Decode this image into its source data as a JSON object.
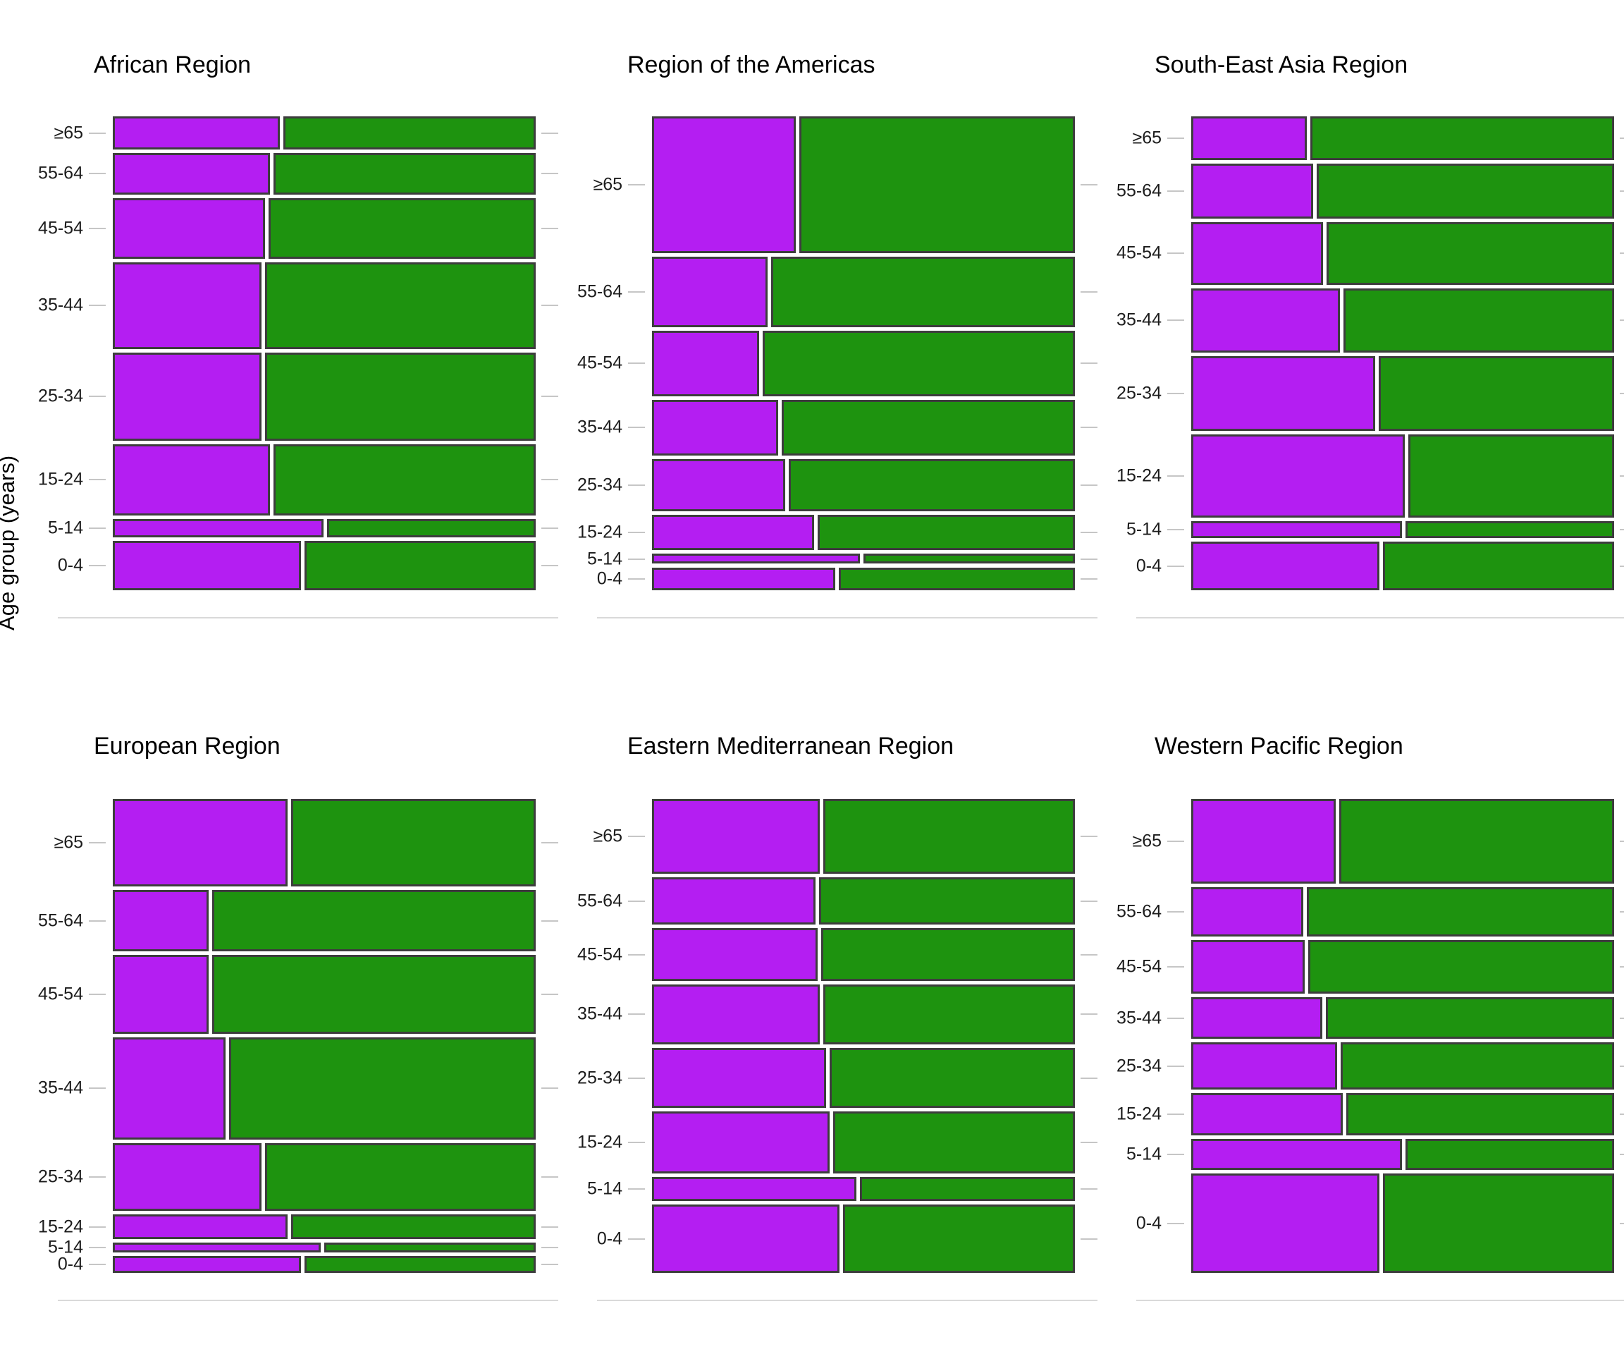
{
  "figure": {
    "y_axis_title": "Age group (years)"
  },
  "chart_data": {
    "type": "mosaic",
    "ylabel": "Age group (years)",
    "xlabel": "",
    "grid": "off",
    "legend": "none",
    "age_groups_top_to_bottom": [
      "≥65",
      "55-64",
      "45-54",
      "35-44",
      "25-34",
      "15-24",
      "5-14",
      "0-4"
    ],
    "series_colors": {
      "purple_segment": "#b41ef2",
      "green_segment": "#1e930f"
    },
    "bar_border_color": "#3d3d3d",
    "tick_color": "#c6c6c6",
    "axis_line_color": "#d9d9d9",
    "panels": [
      {
        "title": "African Region",
        "grid_position": {
          "row": 0,
          "col": 0
        },
        "rows": [
          {
            "age_group": "≥65",
            "height_fraction": 0.074,
            "purple_fraction": 0.398
          },
          {
            "age_group": "55-64",
            "height_fraction": 0.092,
            "purple_fraction": 0.374
          },
          {
            "age_group": "45-54",
            "height_fraction": 0.135,
            "purple_fraction": 0.363
          },
          {
            "age_group": "35-44",
            "height_fraction": 0.193,
            "purple_fraction": 0.354
          },
          {
            "age_group": "25-34",
            "height_fraction": 0.197,
            "purple_fraction": 0.354
          },
          {
            "age_group": "15-24",
            "height_fraction": 0.158,
            "purple_fraction": 0.374
          },
          {
            "age_group": "5-14",
            "height_fraction": 0.041,
            "purple_fraction": 0.502
          },
          {
            "age_group": "0-4",
            "height_fraction": 0.11,
            "purple_fraction": 0.449
          }
        ]
      },
      {
        "title": "Region of the Americas",
        "grid_position": {
          "row": 0,
          "col": 1
        },
        "rows": [
          {
            "age_group": "≥65",
            "height_fraction": 0.305,
            "purple_fraction": 0.343
          },
          {
            "age_group": "55-64",
            "height_fraction": 0.156,
            "purple_fraction": 0.276
          },
          {
            "age_group": "45-54",
            "height_fraction": 0.146,
            "purple_fraction": 0.256
          },
          {
            "age_group": "35-44",
            "height_fraction": 0.125,
            "purple_fraction": 0.3
          },
          {
            "age_group": "25-34",
            "height_fraction": 0.116,
            "purple_fraction": 0.317
          },
          {
            "age_group": "15-24",
            "height_fraction": 0.079,
            "purple_fraction": 0.386
          },
          {
            "age_group": "5-14",
            "height_fraction": 0.022,
            "purple_fraction": 0.496
          },
          {
            "age_group": "0-4",
            "height_fraction": 0.051,
            "purple_fraction": 0.437
          }
        ]
      },
      {
        "title": "South-East Asia Region",
        "grid_position": {
          "row": 0,
          "col": 2
        },
        "rows": [
          {
            "age_group": "≥65",
            "height_fraction": 0.098,
            "purple_fraction": 0.275
          },
          {
            "age_group": "55-64",
            "height_fraction": 0.122,
            "purple_fraction": 0.291
          },
          {
            "age_group": "45-54",
            "height_fraction": 0.139,
            "purple_fraction": 0.314
          },
          {
            "age_group": "35-44",
            "height_fraction": 0.143,
            "purple_fraction": 0.355
          },
          {
            "age_group": "25-34",
            "height_fraction": 0.167,
            "purple_fraction": 0.438
          },
          {
            "age_group": "15-24",
            "height_fraction": 0.185,
            "purple_fraction": 0.509
          },
          {
            "age_group": "5-14",
            "height_fraction": 0.038,
            "purple_fraction": 0.502
          },
          {
            "age_group": "0-4",
            "height_fraction": 0.108,
            "purple_fraction": 0.449
          }
        ]
      },
      {
        "title": "European Region",
        "grid_position": {
          "row": 1,
          "col": 0
        },
        "rows": [
          {
            "age_group": "≥65",
            "height_fraction": 0.194,
            "purple_fraction": 0.417
          },
          {
            "age_group": "55-64",
            "height_fraction": 0.138,
            "purple_fraction": 0.229
          },
          {
            "age_group": "45-54",
            "height_fraction": 0.175,
            "purple_fraction": 0.229
          },
          {
            "age_group": "35-44",
            "height_fraction": 0.227,
            "purple_fraction": 0.269
          },
          {
            "age_group": "25-34",
            "height_fraction": 0.152,
            "purple_fraction": 0.355
          },
          {
            "age_group": "15-24",
            "height_fraction": 0.055,
            "purple_fraction": 0.417
          },
          {
            "age_group": "5-14",
            "height_fraction": 0.022,
            "purple_fraction": 0.496
          },
          {
            "age_group": "0-4",
            "height_fraction": 0.037,
            "purple_fraction": 0.448
          }
        ]
      },
      {
        "title": "Eastern Mediterranean Region",
        "grid_position": {
          "row": 1,
          "col": 1
        },
        "rows": [
          {
            "age_group": "≥65",
            "height_fraction": 0.166,
            "purple_fraction": 0.4
          },
          {
            "age_group": "55-64",
            "height_fraction": 0.106,
            "purple_fraction": 0.39
          },
          {
            "age_group": "45-54",
            "height_fraction": 0.117,
            "purple_fraction": 0.395
          },
          {
            "age_group": "35-44",
            "height_fraction": 0.134,
            "purple_fraction": 0.4
          },
          {
            "age_group": "25-34",
            "height_fraction": 0.133,
            "purple_fraction": 0.415
          },
          {
            "age_group": "15-24",
            "height_fraction": 0.139,
            "purple_fraction": 0.424
          },
          {
            "age_group": "5-14",
            "height_fraction": 0.053,
            "purple_fraction": 0.487
          },
          {
            "age_group": "0-4",
            "height_fraction": 0.152,
            "purple_fraction": 0.447
          }
        ]
      },
      {
        "title": "Western Pacific Region",
        "grid_position": {
          "row": 1,
          "col": 2
        },
        "rows": [
          {
            "age_group": "≥65",
            "height_fraction": 0.188,
            "purple_fraction": 0.344
          },
          {
            "age_group": "55-64",
            "height_fraction": 0.111,
            "purple_fraction": 0.268
          },
          {
            "age_group": "45-54",
            "height_fraction": 0.119,
            "purple_fraction": 0.27
          },
          {
            "age_group": "35-44",
            "height_fraction": 0.092,
            "purple_fraction": 0.312
          },
          {
            "age_group": "25-34",
            "height_fraction": 0.106,
            "purple_fraction": 0.348
          },
          {
            "age_group": "15-24",
            "height_fraction": 0.094,
            "purple_fraction": 0.361
          },
          {
            "age_group": "5-14",
            "height_fraction": 0.069,
            "purple_fraction": 0.502
          },
          {
            "age_group": "0-4",
            "height_fraction": 0.221,
            "purple_fraction": 0.449
          }
        ]
      }
    ]
  }
}
